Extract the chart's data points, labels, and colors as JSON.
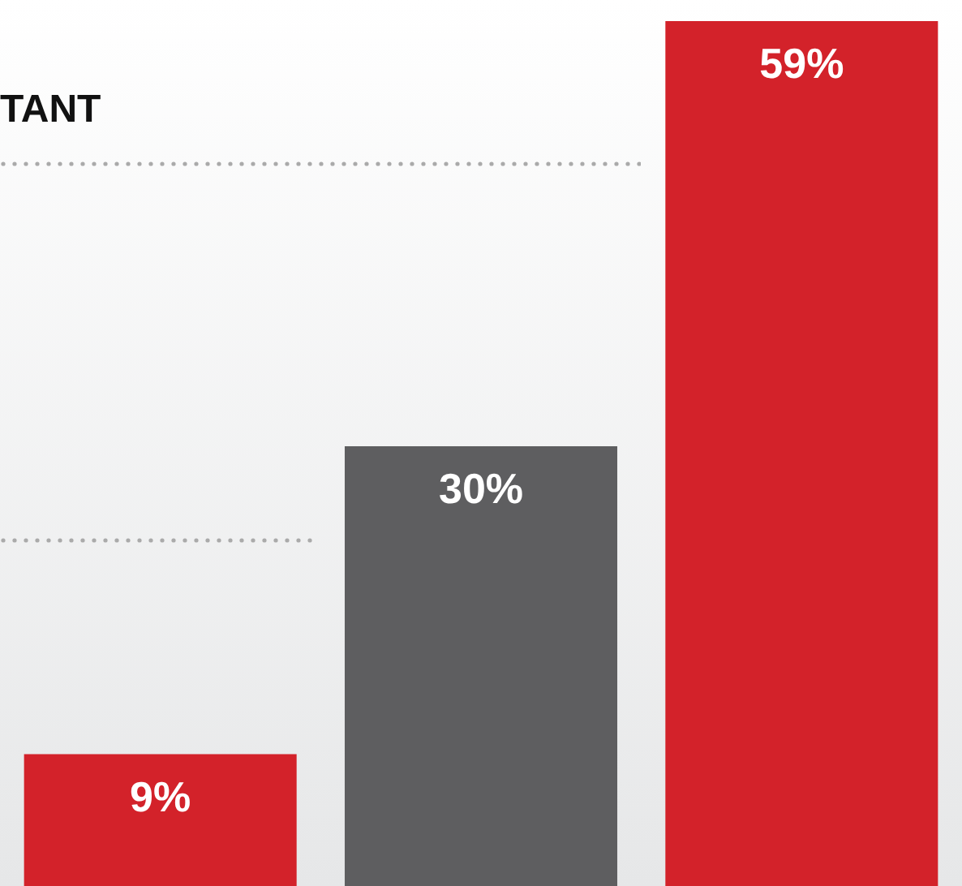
{
  "chart_data": {
    "type": "bar",
    "categories": [
      null,
      null,
      null
    ],
    "values": [
      9,
      30,
      59
    ],
    "colors": [
      "#d3222a",
      "#5e5e60",
      "#d3222a"
    ],
    "value_labels": [
      "9%",
      "30%",
      "59%"
    ],
    "annotations": [
      "TANT"
    ],
    "legend": false
  }
}
